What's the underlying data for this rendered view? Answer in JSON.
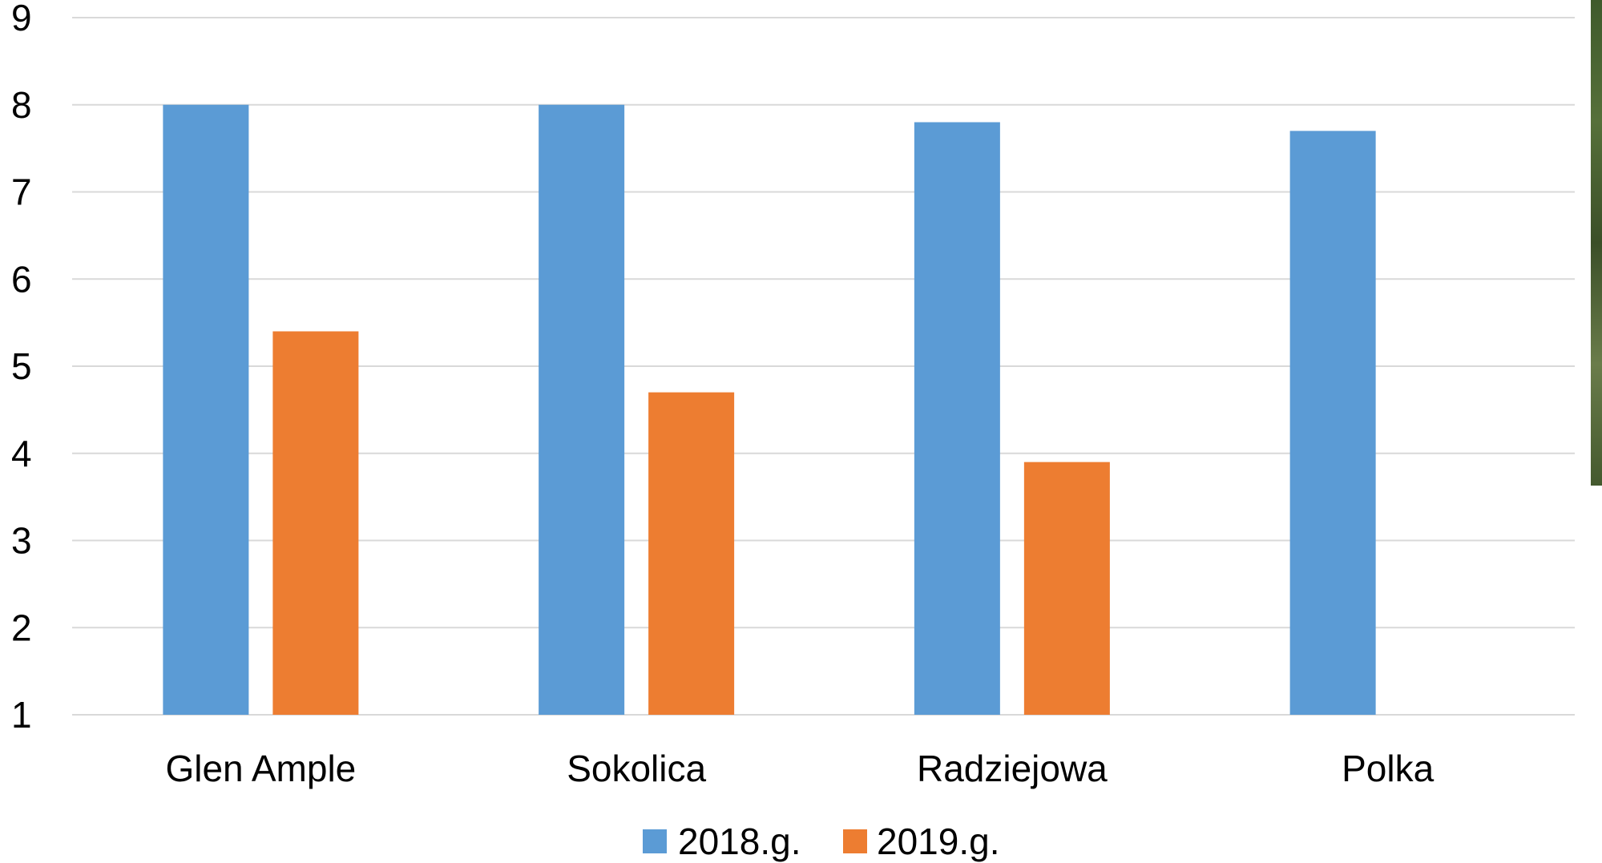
{
  "chart_data": {
    "type": "bar",
    "categories": [
      "Glen Ample",
      "Sokolica",
      "Radziejowa",
      "Polka"
    ],
    "series": [
      {
        "name": "2018.g.",
        "values": [
          8,
          8,
          7.8,
          7.7
        ],
        "color": "#5b9bd5"
      },
      {
        "name": "2019.g.",
        "values": [
          5.4,
          4.7,
          3.9,
          null
        ],
        "color": "#ed7d31"
      }
    ],
    "ylim": [
      1,
      9
    ],
    "yticks": [
      "1",
      "2",
      "3",
      "4",
      "5",
      "6",
      "7",
      "8",
      "9"
    ],
    "grid": true,
    "legend": "bottom-center",
    "gridline_color": "#d9d9d9"
  }
}
